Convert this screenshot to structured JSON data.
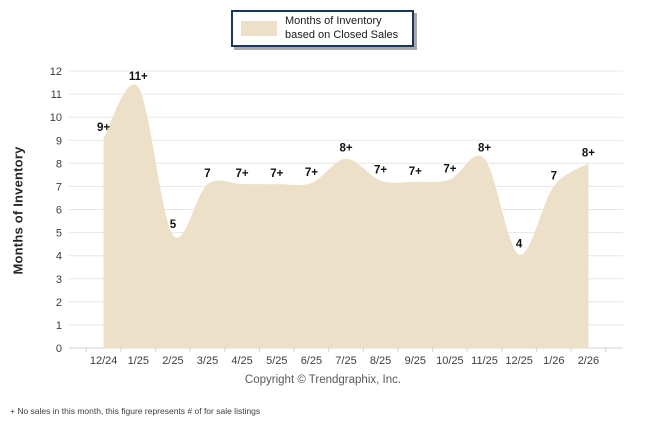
{
  "legend": {
    "label": "Months of Inventory based on Closed Sales",
    "swatch_color": "#EDE0C8",
    "border_color": "#17375E"
  },
  "y_axis": {
    "title": "Months of Inventory"
  },
  "footer": {
    "copyright": "Copyright © Trendgraphix, Inc.",
    "footnote": "+ No sales in this month, this figure represents # of for sale listings"
  },
  "chart_data": {
    "type": "area",
    "title": "Months of Inventory based on Closed Sales",
    "categories": [
      "12/24",
      "1/25",
      "2/25",
      "3/25",
      "4/25",
      "5/25",
      "6/25",
      "7/25",
      "8/25",
      "9/25",
      "10/25",
      "11/25",
      "12/25",
      "1/26",
      "2/26"
    ],
    "values": [
      9.1,
      11.3,
      4.9,
      7.1,
      7.1,
      7.1,
      7.15,
      8.2,
      7.25,
      7.2,
      7.3,
      8.2,
      4.05,
      7.0,
      8.0
    ],
    "point_labels": [
      "9+",
      "11+",
      "5",
      "7",
      "7+",
      "7+",
      "7+",
      "8+",
      "7+",
      "7+",
      "7+",
      "8+",
      "4",
      "7",
      "8+"
    ],
    "xlabel": "",
    "ylabel": "Months of Inventory",
    "ylim": [
      0,
      12
    ],
    "y_tick_step": 1,
    "grid": "horizontal",
    "smooth": true,
    "legend_position": "top-center",
    "fill_color": "#EDE0C8",
    "grid_color": "#e7e7e7",
    "axis_line_color": "#d6d3cd",
    "tick_label_color": "#3d3d3d",
    "data_label_color": "#111111"
  }
}
